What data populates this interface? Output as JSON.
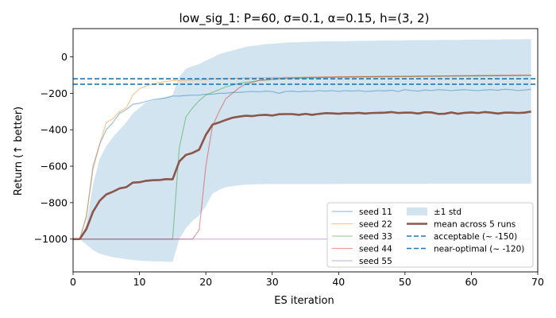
{
  "chart_data": {
    "type": "line",
    "title": "low_sig_1: P=60, σ=0.1, α=0.15, h=(3, 2)",
    "xlabel": "ES iteration",
    "ylabel": "Return (↑ better)",
    "xlim": [
      0,
      70
    ],
    "ylim": [
      -1180,
      155
    ],
    "xticks": [
      0,
      10,
      20,
      30,
      40,
      50,
      60,
      70
    ],
    "yticks": [
      0,
      -200,
      -400,
      -600,
      -800,
      -1000
    ],
    "grid": false,
    "legend_position": "lower-right",
    "legend_columns": 2,
    "x": [
      0,
      1,
      2,
      3,
      4,
      5,
      6,
      7,
      8,
      9,
      10,
      11,
      12,
      13,
      14,
      15,
      16,
      17,
      18,
      19,
      20,
      21,
      22,
      23,
      24,
      25,
      26,
      27,
      28,
      29,
      30,
      31,
      32,
      33,
      34,
      35,
      36,
      37,
      38,
      39,
      40,
      41,
      42,
      43,
      44,
      45,
      46,
      47,
      48,
      49,
      50,
      51,
      52,
      53,
      54,
      55,
      56,
      57,
      58,
      59,
      60,
      61,
      62,
      63,
      64,
      65,
      66,
      67,
      68,
      69
    ],
    "series": [
      {
        "name": "seed 11",
        "color": "#1f77b4",
        "values": [
          -1000,
          -1000,
          -880,
          -600,
          -480,
          -400,
          -360,
          -310,
          -290,
          -260,
          -255,
          -245,
          -235,
          -230,
          -225,
          -215,
          -215,
          -212,
          -210,
          -210,
          -205,
          -205,
          -200,
          -200,
          -195,
          -195,
          -192,
          -190,
          -192,
          -188,
          -190,
          -200,
          -190,
          -188,
          -192,
          -188,
          -190,
          -185,
          -188,
          -185,
          -190,
          -185,
          -188,
          -185,
          -190,
          -188,
          -185,
          -187,
          -183,
          -190,
          -180,
          -185,
          -188,
          -182,
          -185,
          -180,
          -182,
          -185,
          -182,
          -180,
          -183,
          -185,
          -182,
          -180,
          -183,
          -178,
          -180,
          -185,
          -182,
          -178
        ]
      },
      {
        "name": "seed 22",
        "color": "#ff7f0e",
        "values": [
          -1000,
          -1000,
          -870,
          -620,
          -480,
          -360,
          -340,
          -300,
          -280,
          -210,
          -175,
          -160,
          -150,
          -140,
          -135,
          -130,
          -130,
          -128,
          -127,
          -125,
          -125,
          -120,
          -120,
          -118,
          -118,
          -117,
          -115,
          -115,
          -115,
          -114,
          -113,
          -113,
          -112,
          -112,
          -112,
          -111,
          -111,
          -110,
          -110,
          -110,
          -109,
          -109,
          -108,
          -108,
          -108,
          -107,
          -107,
          -107,
          -106,
          -106,
          -106,
          -105,
          -105,
          -105,
          -104,
          -104,
          -104,
          -103,
          -103,
          -103,
          -102,
          -102,
          -102,
          -101,
          -101,
          -101,
          -100,
          -100,
          -100,
          -100
        ]
      },
      {
        "name": "seed 33",
        "color": "#2ca02c",
        "values": [
          -1000,
          -1000,
          -1000,
          -1000,
          -1000,
          -1000,
          -1000,
          -1000,
          -1000,
          -1000,
          -1000,
          -1000,
          -1000,
          -1000,
          -1000,
          -1000,
          -500,
          -330,
          -280,
          -240,
          -210,
          -195,
          -180,
          -165,
          -155,
          -145,
          -140,
          -135,
          -130,
          -128,
          -125,
          -122,
          -120,
          -119,
          -118,
          -117,
          -116,
          -115,
          -114,
          -113,
          -112,
          -112,
          -111,
          -111,
          -110,
          -110,
          -110,
          -109,
          -109,
          -109,
          -108,
          -108,
          -108,
          -107,
          -107,
          -107,
          -106,
          -106,
          -106,
          -105,
          -105,
          -105,
          -104,
          -104,
          -104,
          -103,
          -103,
          -103,
          -102,
          -102
        ]
      },
      {
        "name": "seed 44",
        "color": "#d62728",
        "values": [
          -1000,
          -1000,
          -1000,
          -1000,
          -1000,
          -1000,
          -1000,
          -1000,
          -1000,
          -1000,
          -1000,
          -1000,
          -1000,
          -1000,
          -1000,
          -1000,
          -1000,
          -1000,
          -1000,
          -950,
          -600,
          -380,
          -300,
          -230,
          -200,
          -170,
          -150,
          -140,
          -130,
          -125,
          -120,
          -118,
          -116,
          -115,
          -114,
          -113,
          -112,
          -112,
          -111,
          -111,
          -110,
          -110,
          -110,
          -109,
          -109,
          -109,
          -108,
          -108,
          -108,
          -107,
          -107,
          -107,
          -106,
          -106,
          -106,
          -105,
          -105,
          -105,
          -104,
          -104,
          -104,
          -103,
          -103,
          -103,
          -102,
          -102,
          -102,
          -101,
          -101,
          -101
        ]
      },
      {
        "name": "seed 55",
        "color": "#9467bd",
        "values": [
          -1000,
          -1000,
          -1000,
          -1000,
          -1000,
          -1000,
          -1000,
          -1000,
          -1000,
          -1000,
          -1000,
          -1000,
          -1000,
          -1000,
          -1000,
          -1000,
          -1000,
          -1000,
          -1000,
          -1000,
          -1000,
          -1000,
          -1000,
          -1000,
          -1000,
          -1000,
          -1000,
          -1000,
          -1000,
          -1000,
          -1000,
          -1000,
          -1000,
          -1000,
          -1000,
          -1000,
          -1000,
          -1000,
          -1000,
          -1000,
          -1000,
          -1000,
          -1000,
          -1000,
          -1000,
          -1000,
          -1000,
          -1000,
          -1000,
          -1000,
          -1000,
          -1000,
          -1000,
          -1000,
          -1000,
          -1000,
          -1000,
          -1000,
          -1000,
          -1000,
          -1000,
          -1000,
          -1000,
          -1000,
          -1000,
          -1000,
          -1000,
          -1000,
          -1000,
          -1000
        ]
      },
      {
        "name": "mean across 5 runs",
        "color": "#8c564b",
        "values": [
          -1000,
          -1000,
          -945,
          -850,
          -790,
          -755,
          -740,
          -722,
          -715,
          -690,
          -688,
          -680,
          -677,
          -676,
          -671,
          -672,
          -574,
          -538,
          -527,
          -509,
          -428,
          -372,
          -360,
          -346,
          -334,
          -328,
          -323,
          -325,
          -320,
          -318,
          -322,
          -315,
          -314,
          -314,
          -318,
          -313,
          -318,
          -313,
          -309,
          -310,
          -312,
          -309,
          -310,
          -307,
          -311,
          -308,
          -307,
          -306,
          -303,
          -308,
          -306,
          -306,
          -311,
          -304,
          -305,
          -313,
          -312,
          -305,
          -312,
          -307,
          -305,
          -308,
          -303,
          -306,
          -311,
          -306,
          -306,
          -308,
          -306,
          -300
        ]
      },
      {
        "name": "±1 std",
        "color": "#1f77b4",
        "upper": [
          -1000,
          -1000,
          -920,
          -700,
          -560,
          -490,
          -440,
          -400,
          -360,
          -310,
          -280,
          -250,
          -240,
          -230,
          -220,
          -210,
          -110,
          -65,
          -50,
          -40,
          -20,
          -5,
          15,
          25,
          35,
          45,
          55,
          60,
          65,
          70,
          72,
          75,
          78,
          80,
          80,
          82,
          83,
          84,
          85,
          86,
          86,
          86,
          87,
          88,
          88,
          88,
          89,
          90,
          90,
          90,
          91,
          91,
          92,
          92,
          92,
          93,
          93,
          93,
          93,
          94,
          94,
          94,
          95,
          95,
          95,
          96,
          96,
          96,
          97,
          97
        ],
        "lower": [
          -1000,
          -1000,
          -1030,
          -1060,
          -1080,
          -1090,
          -1100,
          -1105,
          -1110,
          -1115,
          -1118,
          -1120,
          -1122,
          -1123,
          -1124,
          -1125,
          -1000,
          -940,
          -900,
          -870,
          -820,
          -750,
          -730,
          -715,
          -710,
          -705,
          -702,
          -700,
          -699,
          -698,
          -698,
          -698,
          -698,
          -698,
          -698,
          -698,
          -698,
          -698,
          -698,
          -698,
          -698,
          -697,
          -697,
          -697,
          -697,
          -697,
          -697,
          -697,
          -697,
          -697,
          -697,
          -697,
          -697,
          -697,
          -696,
          -696,
          -696,
          -696,
          -696,
          -696,
          -696,
          -696,
          -696,
          -696,
          -696,
          -696,
          -696,
          -696,
          -696,
          -696
        ]
      }
    ],
    "reference_lines": [
      {
        "name": "acceptable (~ -150)",
        "y": -150,
        "color": "#1f77b4"
      },
      {
        "name": "near-optimal (~ -120)",
        "y": -120,
        "color": "#1f77b4"
      }
    ]
  }
}
